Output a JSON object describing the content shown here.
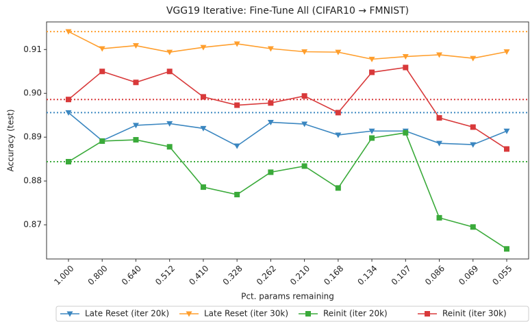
{
  "chart_data": {
    "type": "line",
    "title": "VGG19 Iterative: Fine-Tune All (CIFAR10 → FMNIST)",
    "x_label": "Pct. params remaining",
    "y_label": "Accuracy (test)",
    "categories": [
      "1.000",
      "0.800",
      "0.640",
      "0.512",
      "0.410",
      "0.328",
      "0.262",
      "0.210",
      "0.168",
      "0.134",
      "0.107",
      "0.086",
      "0.069",
      "0.055"
    ],
    "ylim": [
      0.8622,
      0.9163
    ],
    "yticks": [
      0.87,
      0.88,
      0.89,
      {
        "value": 0.9,
        "label": "0.90"
      },
      0.91
    ],
    "grid": false,
    "legend": "bottom",
    "series": [
      {
        "name": "Late Reset (iter 20k)",
        "color": "#3a86c0",
        "marker": "triangle-down",
        "baseline": 0.8956,
        "values": [
          0.8956,
          0.8892,
          0.8927,
          0.8931,
          0.892,
          0.888,
          0.8934,
          0.893,
          0.8905,
          0.8914,
          0.8914,
          0.8886,
          0.8883,
          0.8914
        ]
      },
      {
        "name": "Late Reset (iter 30k)",
        "color": "#ff9e2c",
        "marker": "triangle-down",
        "baseline": 0.9141,
        "values": [
          0.9141,
          0.9102,
          0.9109,
          0.9094,
          0.9105,
          0.9113,
          0.9102,
          0.9095,
          0.9094,
          0.9078,
          0.9084,
          0.9088,
          0.908,
          0.9095
        ]
      },
      {
        "name": "Reinit (iter 20k)",
        "color": "#3aaa3a",
        "marker": "square",
        "baseline": 0.8844,
        "values": [
          0.8844,
          0.8891,
          0.8894,
          0.8878,
          0.8786,
          0.8769,
          0.882,
          0.8834,
          0.8784,
          0.8898,
          0.891,
          0.8716,
          0.8695,
          0.8645
        ]
      },
      {
        "name": "Reinit (iter 30k)",
        "color": "#d8393a",
        "marker": "square",
        "baseline": 0.8986,
        "values": [
          0.8986,
          0.905,
          0.9025,
          0.905,
          0.8992,
          0.8973,
          0.8978,
          0.8994,
          0.8956,
          0.9048,
          0.9059,
          0.8944,
          0.8923,
          0.8873
        ]
      }
    ]
  }
}
